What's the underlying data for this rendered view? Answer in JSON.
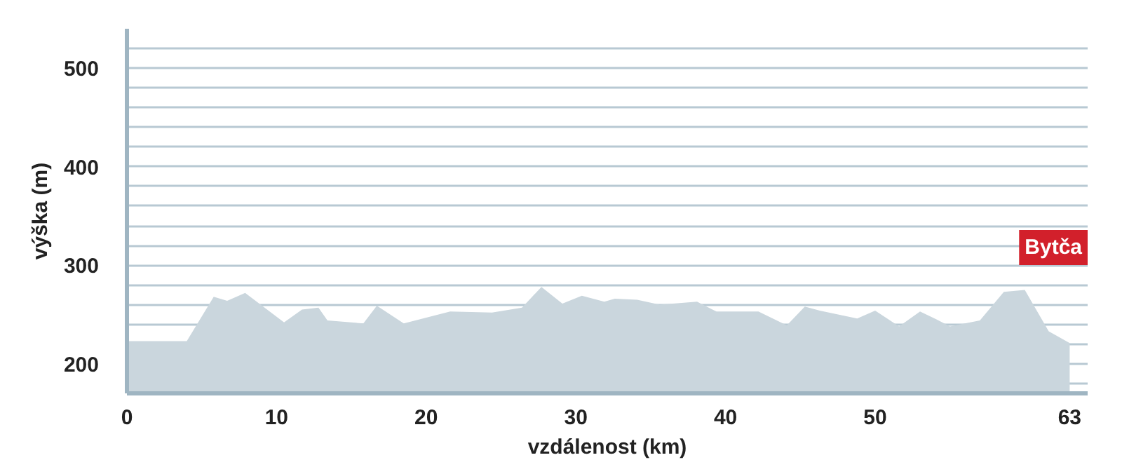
{
  "chart_data": {
    "type": "area",
    "xlabel": "vzdálenost (km)",
    "ylabel": "výška (m)",
    "x": [
      0,
      4.0,
      5.8,
      6.7,
      7.9,
      10.5,
      11.7,
      12.8,
      13.4,
      15.8,
      16.7,
      18.5,
      21.6,
      24.4,
      26.4,
      27.7,
      29.1,
      30.4,
      31.9,
      32.6,
      34.1,
      35.6,
      38.1,
      39.4,
      42.2,
      44.1,
      45.3,
      46.3,
      48.8,
      50.0,
      51.6,
      53.0,
      54.1,
      55.0,
      57.0,
      58.6,
      60.0,
      61.6,
      63.0
    ],
    "series": [
      {
        "color": "#cad6dd",
        "values": [
          223,
          223,
          268,
          264,
          272,
          242,
          255,
          257,
          244,
          241,
          259,
          241,
          253,
          252,
          257,
          278,
          261,
          269,
          263,
          266,
          265,
          260,
          263,
          253,
          253,
          239,
          258,
          254,
          246,
          254,
          238,
          253,
          245,
          238,
          244,
          273,
          275,
          233,
          221
        ]
      }
    ],
    "xlim": [
      0,
      64.2
    ],
    "ylim": [
      170,
      540
    ],
    "xticks": [
      0,
      10,
      20,
      30,
      40,
      50,
      63
    ],
    "yticks": [
      {
        "value": 180,
        "label": null
      },
      200,
      {
        "value": 220,
        "label": null
      },
      {
        "value": 240,
        "label": null
      },
      {
        "value": 260,
        "label": null
      },
      {
        "value": 280,
        "label": null
      },
      300,
      {
        "value": 320,
        "label": null
      },
      {
        "value": 340,
        "label": null
      },
      {
        "value": 360,
        "label": null
      },
      {
        "value": 380,
        "label": null
      },
      400,
      {
        "value": 420,
        "label": null
      },
      {
        "value": 440,
        "label": null
      },
      {
        "value": 460,
        "label": null
      },
      {
        "value": 480,
        "label": null
      },
      500,
      {
        "value": 520,
        "label": null
      }
    ],
    "grid": "y",
    "annotations": [
      "Bytča"
    ]
  }
}
